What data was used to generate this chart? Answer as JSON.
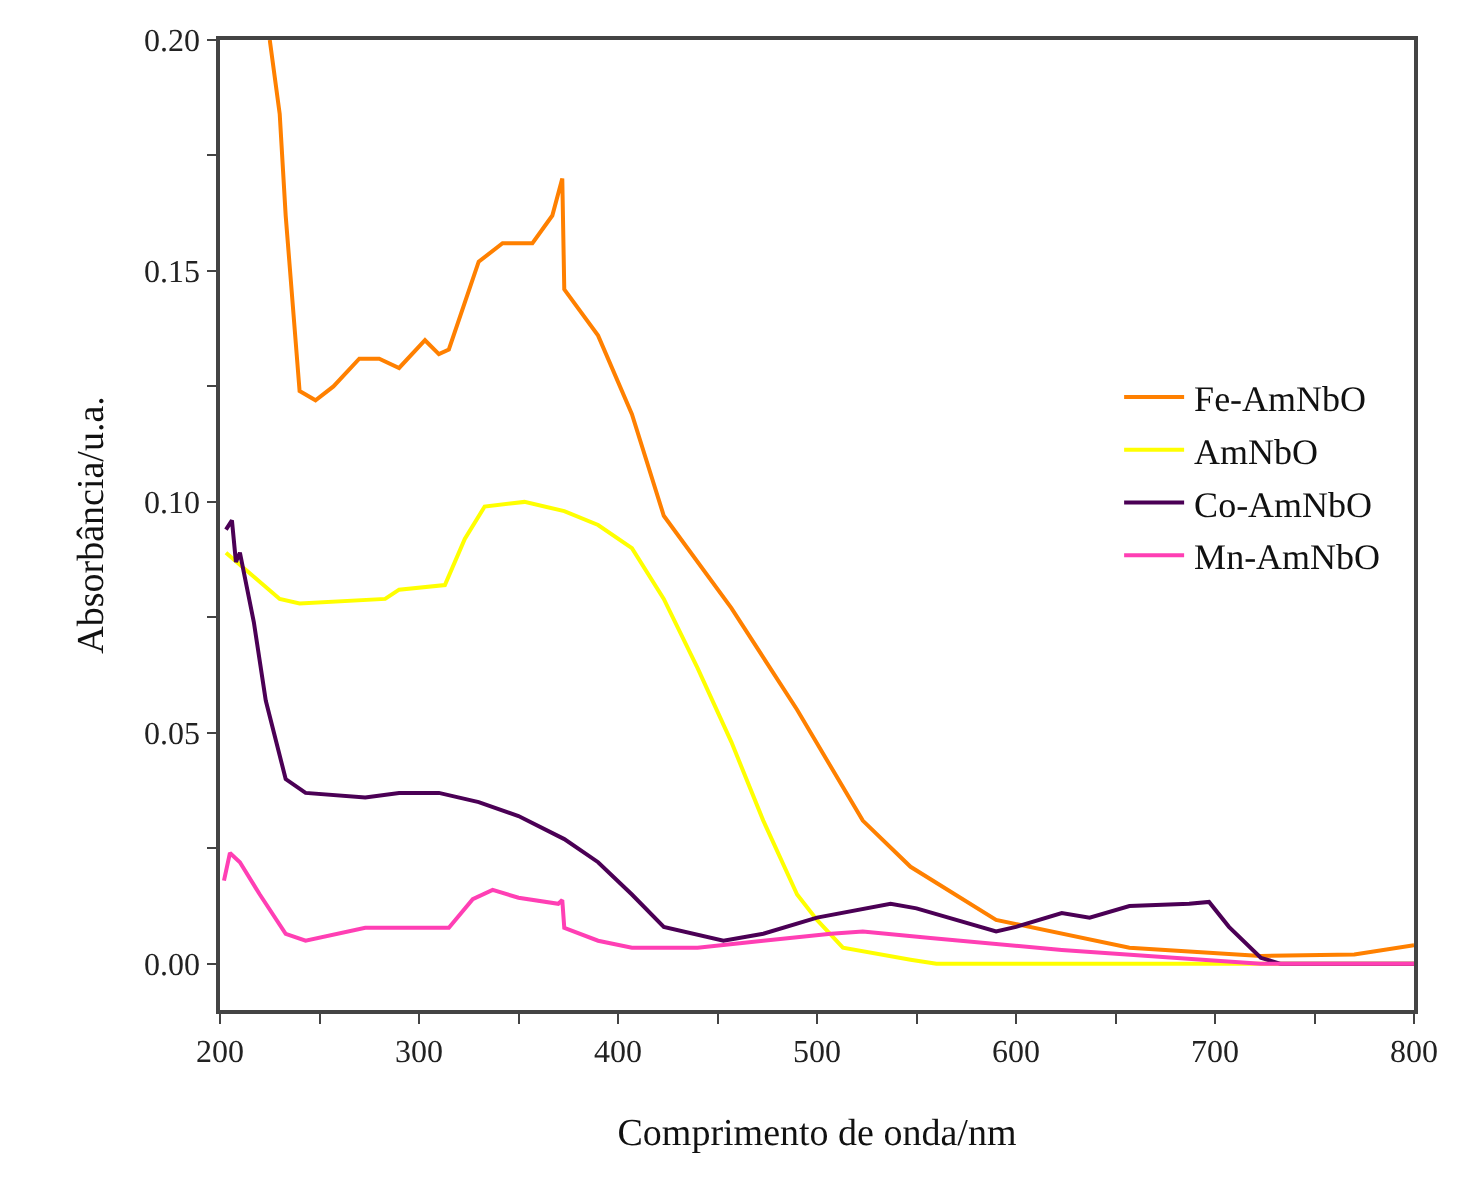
{
  "chart_data": {
    "type": "line",
    "xlabel": "Comprimento de onda/nm",
    "ylabel": "Absorbância/u.a.",
    "xlim": [
      200,
      800
    ],
    "ylim": [
      -0.01,
      0.2
    ],
    "xticks": [
      200,
      {
        "value": 250,
        "label": null
      },
      300,
      {
        "value": 350,
        "label": null
      },
      400,
      {
        "value": 450,
        "label": null
      },
      500,
      {
        "value": 550,
        "label": null
      },
      600,
      {
        "value": 650,
        "label": null
      },
      700,
      {
        "value": 750,
        "label": null
      },
      800
    ],
    "yticks": [
      {
        "value": 0,
        "label": "0.00"
      },
      {
        "value": 0.025,
        "label": null
      },
      {
        "value": 0.05,
        "label": "0.05"
      },
      {
        "value": 0.075,
        "label": null
      },
      {
        "value": 0.1,
        "label": "0.10"
      },
      {
        "value": 0.125,
        "label": null
      },
      {
        "value": 0.15,
        "label": "0.15"
      },
      {
        "value": 0.175,
        "label": null
      },
      {
        "value": 0.2,
        "label": "0.20"
      }
    ],
    "legend": "right",
    "marker": "none",
    "line_style": "solid",
    "series": [
      {
        "name": "Fe-AmNbO",
        "color": "#ff8000",
        "x": [
          225,
          230,
          233,
          240,
          248,
          257,
          270,
          280,
          290,
          303,
          310,
          315,
          330,
          342,
          357,
          367,
          372,
          373,
          390,
          407,
          423,
          457,
          490,
          523,
          547,
          590,
          657,
          723,
          770,
          800
        ],
        "values": [
          0.2,
          0.184,
          0.162,
          0.124,
          0.122,
          0.125,
          0.131,
          0.131,
          0.129,
          0.135,
          0.132,
          0.133,
          0.152,
          0.156,
          0.156,
          0.162,
          0.17,
          0.146,
          0.136,
          0.119,
          0.097,
          0.077,
          0.055,
          0.031,
          0.021,
          0.0095,
          0.0035,
          0.0017,
          0.002,
          0.004
        ]
      },
      {
        "name": "AmNbO",
        "color": "#ffff00",
        "x": [
          203,
          230,
          240,
          283,
          290,
          313,
          323,
          333,
          353,
          373,
          390,
          407,
          423,
          440,
          457,
          473,
          490,
          500,
          513,
          547,
          560,
          700,
          800
        ],
        "values": [
          0.089,
          0.079,
          0.078,
          0.079,
          0.081,
          0.082,
          0.092,
          0.099,
          0.1,
          0.098,
          0.095,
          0.09,
          0.079,
          0.064,
          0.048,
          0.031,
          0.015,
          0.0095,
          0.0035,
          0.0009,
          0.0,
          0.0,
          0.0
        ]
      },
      {
        "name": "Co-AmNbO",
        "color": "#4b0055",
        "x": [
          203,
          206,
          208,
          210,
          217,
          223,
          233,
          243,
          273,
          290,
          310,
          330,
          350,
          373,
          390,
          407,
          423,
          453,
          473,
          500,
          537,
          550,
          590,
          600,
          623,
          637,
          657,
          687,
          697,
          707,
          723,
          733,
          800
        ],
        "values": [
          0.094,
          0.096,
          0.087,
          0.089,
          0.074,
          0.057,
          0.04,
          0.037,
          0.036,
          0.037,
          0.037,
          0.035,
          0.032,
          0.027,
          0.022,
          0.015,
          0.008,
          0.005,
          0.0065,
          0.01,
          0.013,
          0.012,
          0.007,
          0.008,
          0.011,
          0.01,
          0.0125,
          0.013,
          0.0134,
          0.008,
          0.0013,
          0.0,
          0.0
        ]
      },
      {
        "name": "Mn-AmNbO",
        "color": "#ff3fb4",
        "x": [
          202,
          205,
          210,
          220,
          233,
          243,
          273,
          307,
          315,
          327,
          337,
          350,
          370,
          372,
          373,
          390,
          407,
          440,
          473,
          507,
          523,
          557,
          623,
          690,
          723,
          800
        ],
        "values": [
          0.018,
          0.024,
          0.022,
          0.015,
          0.0065,
          0.005,
          0.0078,
          0.0078,
          0.0078,
          0.014,
          0.016,
          0.0143,
          0.013,
          0.0138,
          0.0078,
          0.005,
          0.0035,
          0.0035,
          0.005,
          0.0065,
          0.007,
          0.0056,
          0.003,
          0.001,
          0.0,
          0.0
        ]
      }
    ]
  }
}
